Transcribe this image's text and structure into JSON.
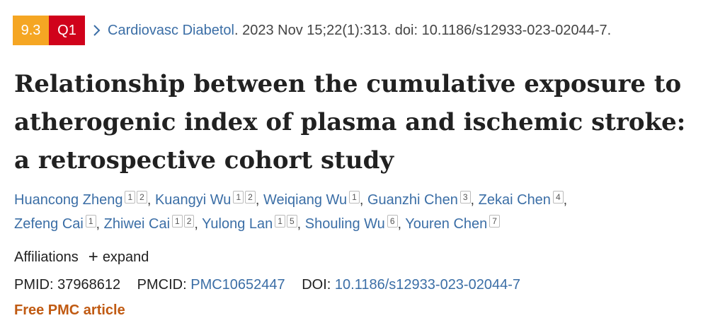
{
  "citation": {
    "impact_factor": "9.3",
    "quartile": "Q1",
    "journal": "Cardiovasc Diabetol",
    "details": ". 2023 Nov 15;22(1):313. doi: 10.1186/s12933-023-02044-7.",
    "if_color": "#f5a623",
    "quartile_color": "#d0021b"
  },
  "title": "Relationship between the cumulative exposure to atherogenic index of plasma and ischemic stroke: a retrospective cohort study",
  "authors": [
    {
      "name": "Huancong Zheng",
      "affs": [
        "1",
        "2"
      ]
    },
    {
      "name": "Kuangyi Wu",
      "affs": [
        "1",
        "2"
      ]
    },
    {
      "name": "Weiqiang Wu",
      "affs": [
        "1"
      ]
    },
    {
      "name": "Guanzhi Chen",
      "affs": [
        "3"
      ]
    },
    {
      "name": "Zekai Chen",
      "affs": [
        "4"
      ]
    },
    {
      "name": "Zefeng Cai",
      "affs": [
        "1"
      ]
    },
    {
      "name": "Zhiwei Cai",
      "affs": [
        "1",
        "2"
      ]
    },
    {
      "name": "Yulong Lan",
      "affs": [
        "1",
        "5"
      ]
    },
    {
      "name": "Shouling Wu",
      "affs": [
        "6"
      ]
    },
    {
      "name": "Youren Chen",
      "affs": [
        "7"
      ]
    }
  ],
  "affiliations": {
    "label": "Affiliations",
    "expand_label": "expand"
  },
  "ids": {
    "pmid_label": "PMID:",
    "pmid": "37968612",
    "pmcid_label": "PMCID:",
    "pmcid": "PMC10652447",
    "doi_label": "DOI:",
    "doi": "10.1186/s12933-023-02044-7"
  },
  "free_label": "Free PMC article"
}
